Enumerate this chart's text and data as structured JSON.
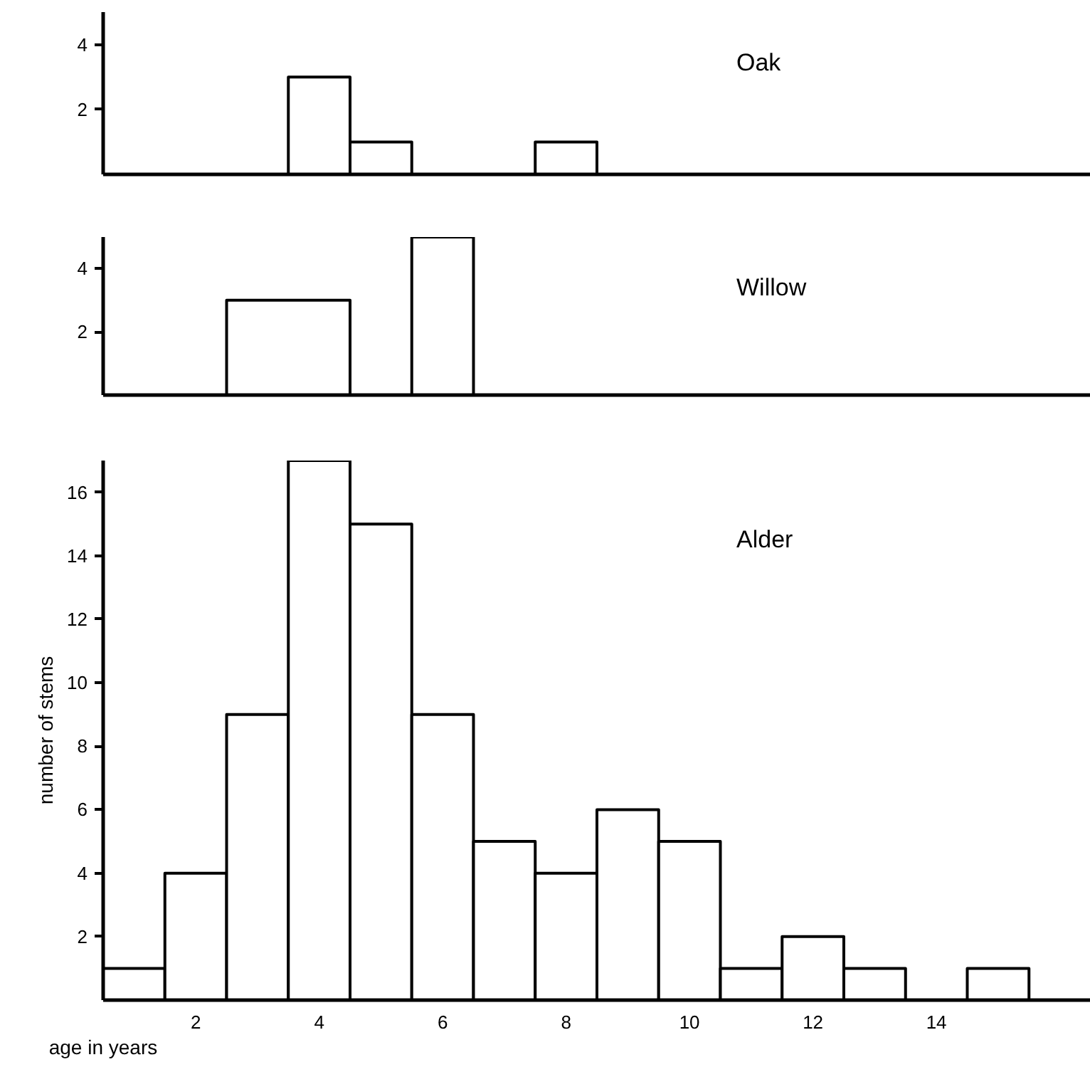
{
  "chart_data": [
    {
      "type": "histogram",
      "title": "Oak",
      "bins": [
        3.5,
        4.5,
        5.5,
        7.5,
        8.5
      ],
      "values": [
        3,
        1,
        0,
        1
      ],
      "color": "#000000",
      "xlim": [
        0.5,
        16.5
      ],
      "ylim": [
        0,
        5
      ],
      "yticks": [
        2,
        4
      ],
      "tick_labels": "y",
      "grid": false
    },
    {
      "type": "histogram",
      "title": "Willow",
      "bins": [
        2.5,
        4.5,
        5.5,
        6.5
      ],
      "values": [
        3,
        0,
        5
      ],
      "color": "#000000",
      "xlim": [
        0.5,
        16.5
      ],
      "ylim": [
        0,
        5
      ],
      "yticks": [
        2,
        4
      ],
      "tick_labels": "y",
      "grid": false
    },
    {
      "type": "histogram",
      "title": "Alder",
      "xlabel": "age in years",
      "ylabel": "number of stems",
      "bins": [
        0.5,
        1.5,
        2.5,
        3.5,
        4.5,
        5.5,
        6.5,
        7.5,
        8.5,
        9.5,
        10.5,
        11.5,
        12.5,
        13.5,
        14.5,
        15.5
      ],
      "values": [
        1,
        4,
        9,
        17,
        15,
        9,
        5,
        4,
        6,
        5,
        1,
        2,
        1,
        0,
        1
      ],
      "color": "#000000",
      "xlim": [
        0.5,
        16.5
      ],
      "xticks": [
        2,
        4,
        6,
        8,
        10,
        12,
        14
      ],
      "ylim": [
        0,
        17
      ],
      "yticks": [
        2,
        4,
        6,
        8,
        10,
        12,
        14,
        16
      ],
      "grid": false
    }
  ]
}
